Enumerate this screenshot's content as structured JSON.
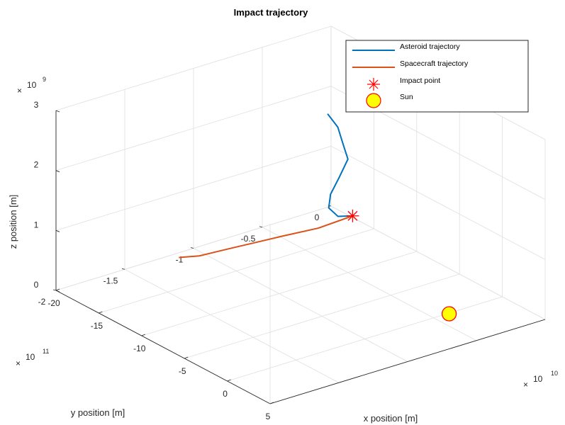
{
  "chart_data": {
    "type": "line",
    "title": "Impact trajectory",
    "xlabel": "x position [m]",
    "ylabel": "y position [m]",
    "zlabel": "z position [m]",
    "xlim": [
      -20,
      5
    ],
    "ylim": [
      -2,
      0
    ],
    "zlim": [
      0,
      3
    ],
    "x_ticks": [
      -20,
      -15,
      -10,
      -5,
      0,
      5
    ],
    "x_tick_labels": [
      "-20",
      "-15",
      "-10",
      "-5",
      "0",
      "5"
    ],
    "y_ticks": [
      -2,
      -1.5,
      -1,
      -0.5,
      0
    ],
    "y_tick_labels": [
      "-2",
      "-1.5",
      "-1",
      "-0.5",
      "0"
    ],
    "z_ticks": [
      0,
      1,
      2,
      3
    ],
    "z_tick_labels": [
      "0",
      "1",
      "2",
      "3"
    ],
    "x_exponent": {
      "base": "10",
      "power": "10"
    },
    "y_exponent": {
      "base": "10",
      "power": "11"
    },
    "z_exponent": {
      "base": "10",
      "power": "9"
    },
    "grid": true,
    "legend_position": "top-right",
    "series": [
      {
        "name": "Asteroid trajectory",
        "kind": "line",
        "color": "#0072BD",
        "x": [
          -18.8,
          -16.0,
          -13.0,
          -10.0,
          -7.0,
          -4.0,
          -1.0,
          2.0,
          3.4
        ],
        "y": [
          -0.1,
          -0.2,
          -0.35,
          -0.5,
          -0.75,
          -1.0,
          -1.2,
          -1.32,
          -1.3
        ],
        "z": [
          1.7,
          1.76,
          1.82,
          1.89,
          1.99,
          2.11,
          2.25,
          2.42,
          2.52
        ]
      },
      {
        "name": "Spacecraft trajectory",
        "kind": "line",
        "color": "#D95319",
        "x": [
          -18.5,
          -14.5,
          -11.0,
          -7.5,
          -4.0,
          -0.8,
          1.8,
          3.4
        ],
        "y": [
          -1.2,
          -1.3,
          -1.4,
          -1.5,
          -1.55,
          -1.55,
          -1.45,
          -1.3
        ],
        "z": [
          0.1,
          0.5,
          0.9,
          1.3,
          1.69,
          2.04,
          2.3,
          2.52
        ]
      },
      {
        "name": "Impact point",
        "kind": "marker",
        "marker": "asterisk",
        "color": "#FF0000",
        "x": [
          3.4
        ],
        "y": [
          -1.3
        ],
        "z": [
          2.52
        ]
      },
      {
        "name": "Sun",
        "kind": "marker",
        "marker": "circle",
        "color": "#FFFF00",
        "edge_color": "#FF0000",
        "x": [
          0
        ],
        "y": [
          0
        ],
        "z": [
          0
        ]
      }
    ]
  }
}
